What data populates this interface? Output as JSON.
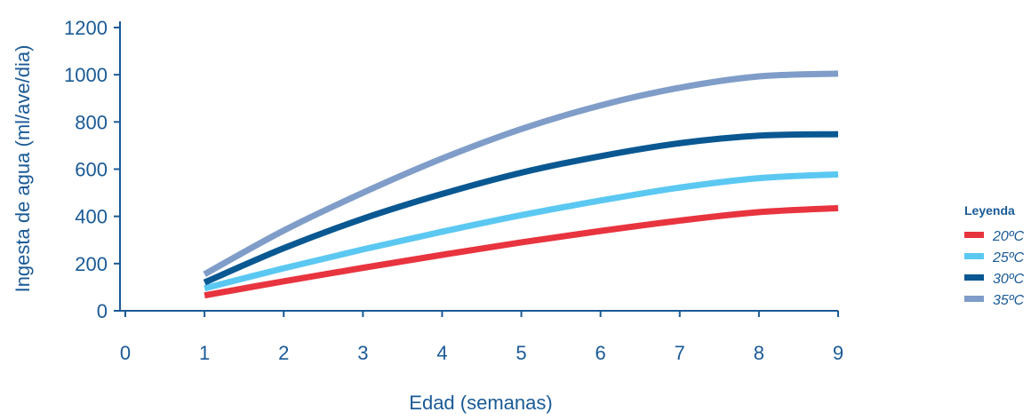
{
  "chart_data": {
    "type": "line",
    "xlabel": "Edad (semanas)",
    "ylabel": "Ingesta de agua (ml/ave/dia)",
    "xlim": [
      0,
      9
    ],
    "ylim": [
      0,
      1200
    ],
    "x_ticks": [
      "0",
      "1",
      "2",
      "3",
      "4",
      "5",
      "6",
      "7",
      "8",
      "9"
    ],
    "y_ticks": [
      "0",
      "200",
      "400",
      "600",
      "800",
      "1000",
      "1200"
    ],
    "legend_title": "Leyenda",
    "legend_position": "right",
    "grid": false,
    "x": [
      1,
      2,
      3,
      4,
      5,
      6,
      7,
      8,
      9
    ],
    "series": [
      {
        "name": "20ºC",
        "color": "#e8343f",
        "values": [
          65,
          125,
          182,
          237,
          290,
          338,
          382,
          418,
          435
        ]
      },
      {
        "name": "25ºC",
        "color": "#5bc8f2",
        "values": [
          95,
          180,
          260,
          335,
          405,
          467,
          522,
          562,
          578
        ]
      },
      {
        "name": "30ºC",
        "color": "#0a5892",
        "values": [
          120,
          265,
          390,
          495,
          585,
          655,
          710,
          742,
          748
        ]
      },
      {
        "name": "35ºC",
        "color": "#7f9dc8",
        "values": [
          155,
          340,
          500,
          645,
          770,
          870,
          945,
          993,
          1005
        ]
      }
    ]
  }
}
